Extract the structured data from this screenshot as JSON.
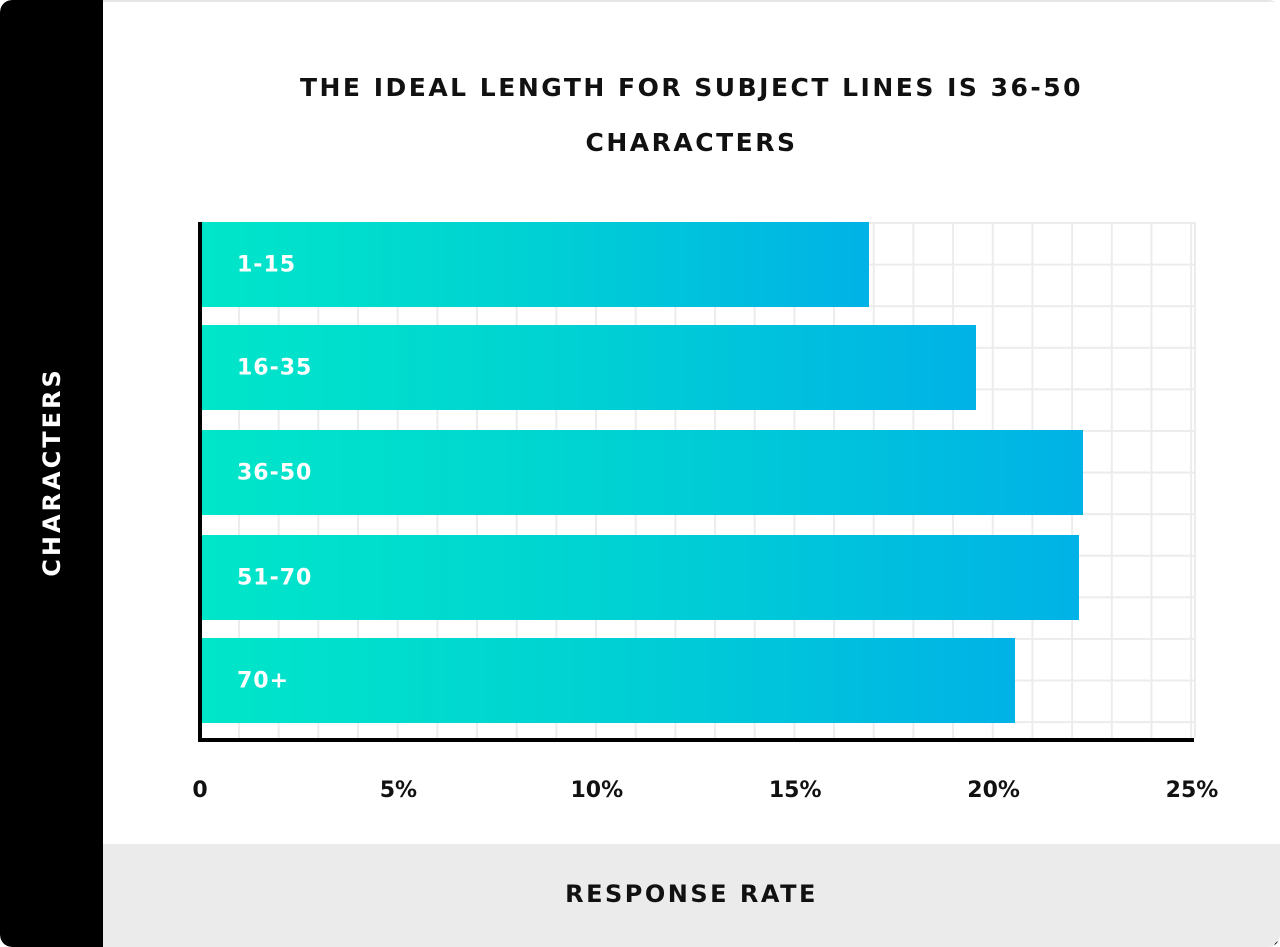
{
  "chart_data": {
    "type": "bar",
    "orientation": "horizontal",
    "title": "THE IDEAL LENGTH FOR SUBJECT LINES IS 36-50 CHARACTERS",
    "title_lines": [
      "THE IDEAL LENGTH FOR SUBJECT LINES IS 36-50",
      "CHARACTERS"
    ],
    "xlabel": "RESPONSE RATE",
    "ylabel": "CHARACTERS",
    "categories": [
      "1-15",
      "16-35",
      "36-50",
      "51-70",
      "70+"
    ],
    "values": [
      16.8,
      19.5,
      22.2,
      22.1,
      20.5
    ],
    "unit": "%",
    "xlim": [
      0,
      25
    ],
    "x_ticks": [
      "0",
      "5%",
      "10%",
      "15%",
      "20%",
      "25%"
    ],
    "x_tick_values": [
      0,
      5,
      10,
      15,
      20,
      25
    ],
    "grid": true,
    "legend": null,
    "colors": {
      "bar_gradient_start": "#00e6c9",
      "bar_gradient_end": "#00b2e6",
      "axis": "#000000",
      "grid": "#ececec",
      "y_panel": "#000000",
      "footer": "#ebebeb"
    }
  }
}
